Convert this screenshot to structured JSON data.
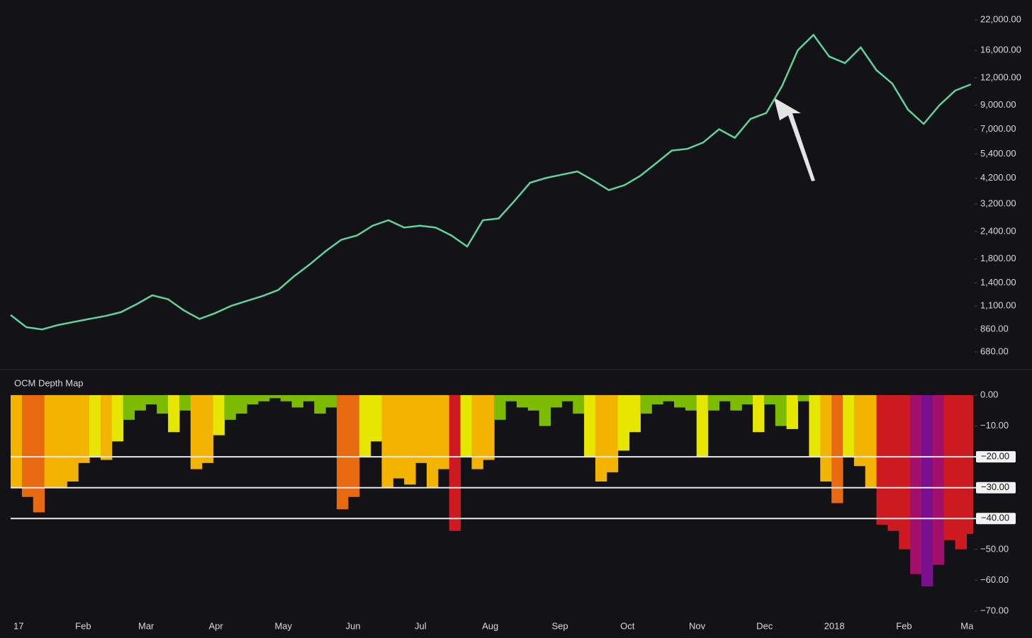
{
  "chart_data": [
    {
      "type": "line",
      "log_scale": true,
      "color": "#5fd39a",
      "x": [
        0,
        7,
        14,
        21,
        28,
        35,
        42,
        49,
        56,
        63,
        70,
        77,
        84,
        91,
        98,
        105,
        112,
        119,
        126,
        133,
        140,
        147,
        154,
        161,
        168,
        175,
        182,
        189,
        196,
        203,
        210,
        217,
        224,
        231,
        238,
        245,
        252,
        259,
        266,
        273,
        280,
        287,
        294,
        301,
        308,
        315,
        322,
        329,
        336,
        343,
        350,
        357,
        364,
        371,
        378,
        385,
        392,
        399,
        406,
        413,
        420,
        427
      ],
      "values": [
        1000,
        880,
        860,
        900,
        930,
        960,
        990,
        1030,
        1120,
        1230,
        1180,
        1050,
        960,
        1020,
        1100,
        1160,
        1220,
        1300,
        1500,
        1700,
        1950,
        2200,
        2300,
        2550,
        2700,
        2500,
        2550,
        2500,
        2300,
        2050,
        2700,
        2750,
        3300,
        4000,
        4200,
        4350,
        4500,
        4100,
        3700,
        3900,
        4300,
        4900,
        5600,
        5700,
        6100,
        7000,
        6400,
        7800,
        8300,
        11000,
        16000,
        18800,
        15000,
        14000,
        16500,
        13000,
        11300,
        8600,
        7400,
        9000,
        10500,
        11200
      ],
      "xlim": [
        0,
        428
      ],
      "ylim": [
        573,
        27100
      ],
      "xticks": [
        {
          "value": 0,
          "label": "17"
        },
        {
          "value": 31,
          "label": "Feb"
        },
        {
          "value": 59,
          "label": "Mar"
        },
        {
          "value": 90,
          "label": "Apr"
        },
        {
          "value": 120,
          "label": "May"
        },
        {
          "value": 151,
          "label": "Jun"
        },
        {
          "value": 181,
          "label": "Jul"
        },
        {
          "value": 212,
          "label": "Aug"
        },
        {
          "value": 243,
          "label": "Sep"
        },
        {
          "value": 273,
          "label": "Oct"
        },
        {
          "value": 304,
          "label": "Nov"
        },
        {
          "value": 334,
          "label": "Dec"
        },
        {
          "value": 365,
          "label": "2018"
        },
        {
          "value": 396,
          "label": "Feb"
        },
        {
          "value": 424,
          "label": "Ma"
        }
      ],
      "yticks": [
        {
          "value": 22000,
          "label": "22,000.00"
        },
        {
          "value": 16000,
          "label": "16,000.00"
        },
        {
          "value": 12000,
          "label": "12,000.00"
        },
        {
          "value": 9000,
          "label": "9,000.00"
        },
        {
          "value": 7000,
          "label": "7,000.00"
        },
        {
          "value": 5400,
          "label": "5,400.00"
        },
        {
          "value": 4200,
          "label": "4,200.00"
        },
        {
          "value": 3200,
          "label": "3,200.00"
        },
        {
          "value": 2400,
          "label": "2,400.00"
        },
        {
          "value": 1800,
          "label": "1,800.00"
        },
        {
          "value": 1400,
          "label": "1,400.00"
        },
        {
          "value": 1100,
          "label": "1,100.00"
        },
        {
          "value": 860,
          "label": "860.00"
        },
        {
          "value": 680,
          "label": "680.00"
        }
      ]
    },
    {
      "type": "depth",
      "title": "OCM Depth Map",
      "x": [
        0,
        5,
        10,
        15,
        20,
        25,
        30,
        35,
        40,
        45,
        50,
        55,
        60,
        65,
        70,
        75,
        80,
        85,
        90,
        95,
        100,
        105,
        110,
        115,
        120,
        125,
        130,
        135,
        140,
        145,
        150,
        155,
        160,
        165,
        170,
        175,
        180,
        185,
        190,
        195,
        200,
        205,
        210,
        215,
        220,
        225,
        230,
        235,
        240,
        245,
        250,
        255,
        260,
        265,
        270,
        275,
        280,
        285,
        290,
        295,
        300,
        305,
        310,
        315,
        320,
        325,
        330,
        335,
        340,
        345,
        350,
        355,
        360,
        365,
        370,
        375,
        380,
        385,
        390,
        395,
        400,
        405,
        410,
        415,
        420,
        425
      ],
      "values": [
        -30,
        -33,
        -38,
        -30,
        -30,
        -28,
        -22,
        -20,
        -21,
        -15,
        -8,
        -5,
        -3,
        -6,
        -12,
        -5,
        -24,
        -22,
        -13,
        -8,
        -6,
        -3,
        -2,
        -1,
        -2,
        -4,
        -2,
        -6,
        -4,
        -37,
        -33,
        -20,
        -15,
        -30,
        -27,
        -29,
        -22,
        -30,
        -24,
        -44,
        -20,
        -24,
        -21,
        -8,
        -2,
        -4,
        -5,
        -10,
        -4,
        -2,
        -6,
        -20,
        -28,
        -25,
        -18,
        -12,
        -6,
        -3,
        -2,
        -4,
        -5,
        -20,
        -5,
        -2,
        -5,
        -3,
        -12,
        -3,
        -10,
        -11,
        -2,
        -20,
        -28,
        -35,
        -20,
        -23,
        -30,
        -42,
        -44,
        -50,
        -58,
        -62,
        -55,
        -47,
        -50,
        -45
      ],
      "colors": [
        "#2f7d00",
        "#7dbb00",
        "#e6e600",
        "#f2b400",
        "#e86a10",
        "#cc1a20",
        "#a0106a",
        "#7a1090"
      ],
      "xlim": [
        0,
        428
      ],
      "ylim": [
        -70,
        0
      ],
      "yticks": [
        {
          "value": 0,
          "label": "0.00"
        },
        {
          "value": -10,
          "label": "−10.00"
        },
        {
          "value": -50,
          "label": "−50.00"
        },
        {
          "value": -60,
          "label": "−60.00"
        },
        {
          "value": -70,
          "label": "−70.00"
        }
      ],
      "reference_lines": [
        {
          "value": -20,
          "label": "−20.00"
        },
        {
          "value": -30,
          "label": "−30.00"
        },
        {
          "value": -40,
          "label": "−40.00"
        }
      ]
    }
  ]
}
